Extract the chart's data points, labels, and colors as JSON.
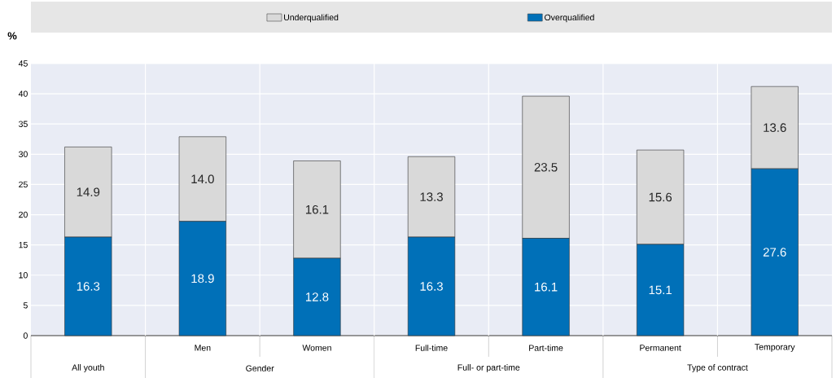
{
  "chart_data": {
    "type": "bar",
    "stacked": true,
    "ylabel": "%",
    "categories": [
      null,
      "Men",
      "Women",
      "Full-time",
      "Part-time",
      "Permanent",
      "Temporary"
    ],
    "series": [
      {
        "name": "Overqualified",
        "color": "#0070b8",
        "values": [
          16.3,
          18.9,
          12.8,
          16.3,
          16.1,
          15.1,
          27.6
        ],
        "value_labels": [
          "16.3",
          "18.9",
          "12.8",
          "16.3",
          "16.1",
          "15.1",
          "27.6"
        ]
      },
      {
        "name": "Underqualified",
        "color": "#d9d9d9",
        "values": [
          14.9,
          14.0,
          16.1,
          13.3,
          23.5,
          15.6,
          13.6
        ],
        "value_labels": [
          "14.9",
          "14.0",
          "16.1",
          "13.3",
          "23.5",
          "15.6",
          "13.6"
        ]
      }
    ],
    "annotations": [
      "All youth",
      "Gender",
      "Full- or part-time",
      "Type of contract"
    ],
    "ylim": [
      0,
      45
    ],
    "yticks": [
      0,
      5,
      10,
      15,
      20,
      25,
      30,
      35,
      40,
      45
    ],
    "grid": true,
    "legend": "top"
  }
}
